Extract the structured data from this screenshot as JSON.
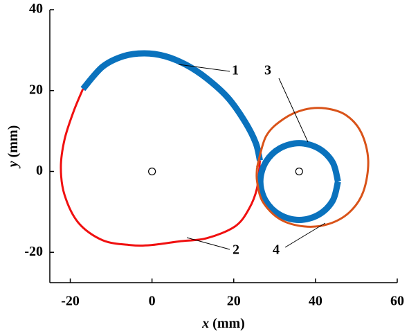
{
  "chart_data": {
    "type": "line",
    "x_label": "x (mm)",
    "y_label": "y (mm)",
    "xlim": [
      -25,
      60
    ],
    "ylim": [
      -27.5,
      40
    ],
    "xticks": [
      -20,
      0,
      20,
      40,
      60
    ],
    "yticks": [
      -20,
      0,
      20,
      40
    ],
    "grid": false,
    "series": [
      {
        "name": "1",
        "color": "#0a72bd",
        "x": [
          -16.9,
          -12.1,
          -7,
          -1.9,
          3.2,
          8.3,
          13.4,
          18.6,
          22.8,
          25.4,
          26.4
        ],
        "values": [
          20.4,
          25.9,
          28.5,
          29.2,
          28.5,
          26.4,
          23,
          18.2,
          12.2,
          7,
          2.7
        ]
      },
      {
        "name": "2",
        "color": "#f01010",
        "x": [
          26.4,
          25.7,
          23.7,
          20.3,
          13.4,
          6.6,
          -0.2,
          -5.3,
          -12.1,
          -18,
          -21.4,
          -22.3,
          -21.4,
          -19.2,
          -16.9
        ],
        "values": [
          2.7,
          -4.1,
          -9.3,
          -13.6,
          -16.5,
          -17.3,
          -18.2,
          -18.2,
          -17,
          -12.7,
          -5.8,
          1,
          7.9,
          14.8,
          20.4
        ]
      },
      {
        "name": "3",
        "color": "#0a72bd",
        "x": [
          45.5,
          44.2,
          40.75,
          36,
          31.25,
          27.8,
          26.5,
          27.8,
          31.25,
          36,
          40.75,
          44.2,
          45.5
        ],
        "values": [
          -2.5,
          2.25,
          5.7,
          7,
          5.7,
          2.25,
          -2.5,
          -7.25,
          -10.7,
          -12,
          -10.7,
          -7.25,
          -2.5
        ]
      },
      {
        "name": "4",
        "color": "#d95319",
        "x": [
          25.7,
          27.9,
          32.2,
          37.3,
          42.4,
          47.5,
          51.2,
          52.9,
          51.7,
          48.3,
          43.2,
          37.3,
          31.3,
          27.1,
          25.7,
          25.7
        ],
        "values": [
          1,
          8.7,
          13,
          15.3,
          15.6,
          13.9,
          9.6,
          2.7,
          -5,
          -10.1,
          -13,
          -13.6,
          -11.8,
          -7.5,
          -2.4,
          1
        ]
      },
      {
        "color": "#000000",
        "x": [
          0,
          36
        ],
        "values": [
          0,
          0
        ]
      }
    ]
  }
}
